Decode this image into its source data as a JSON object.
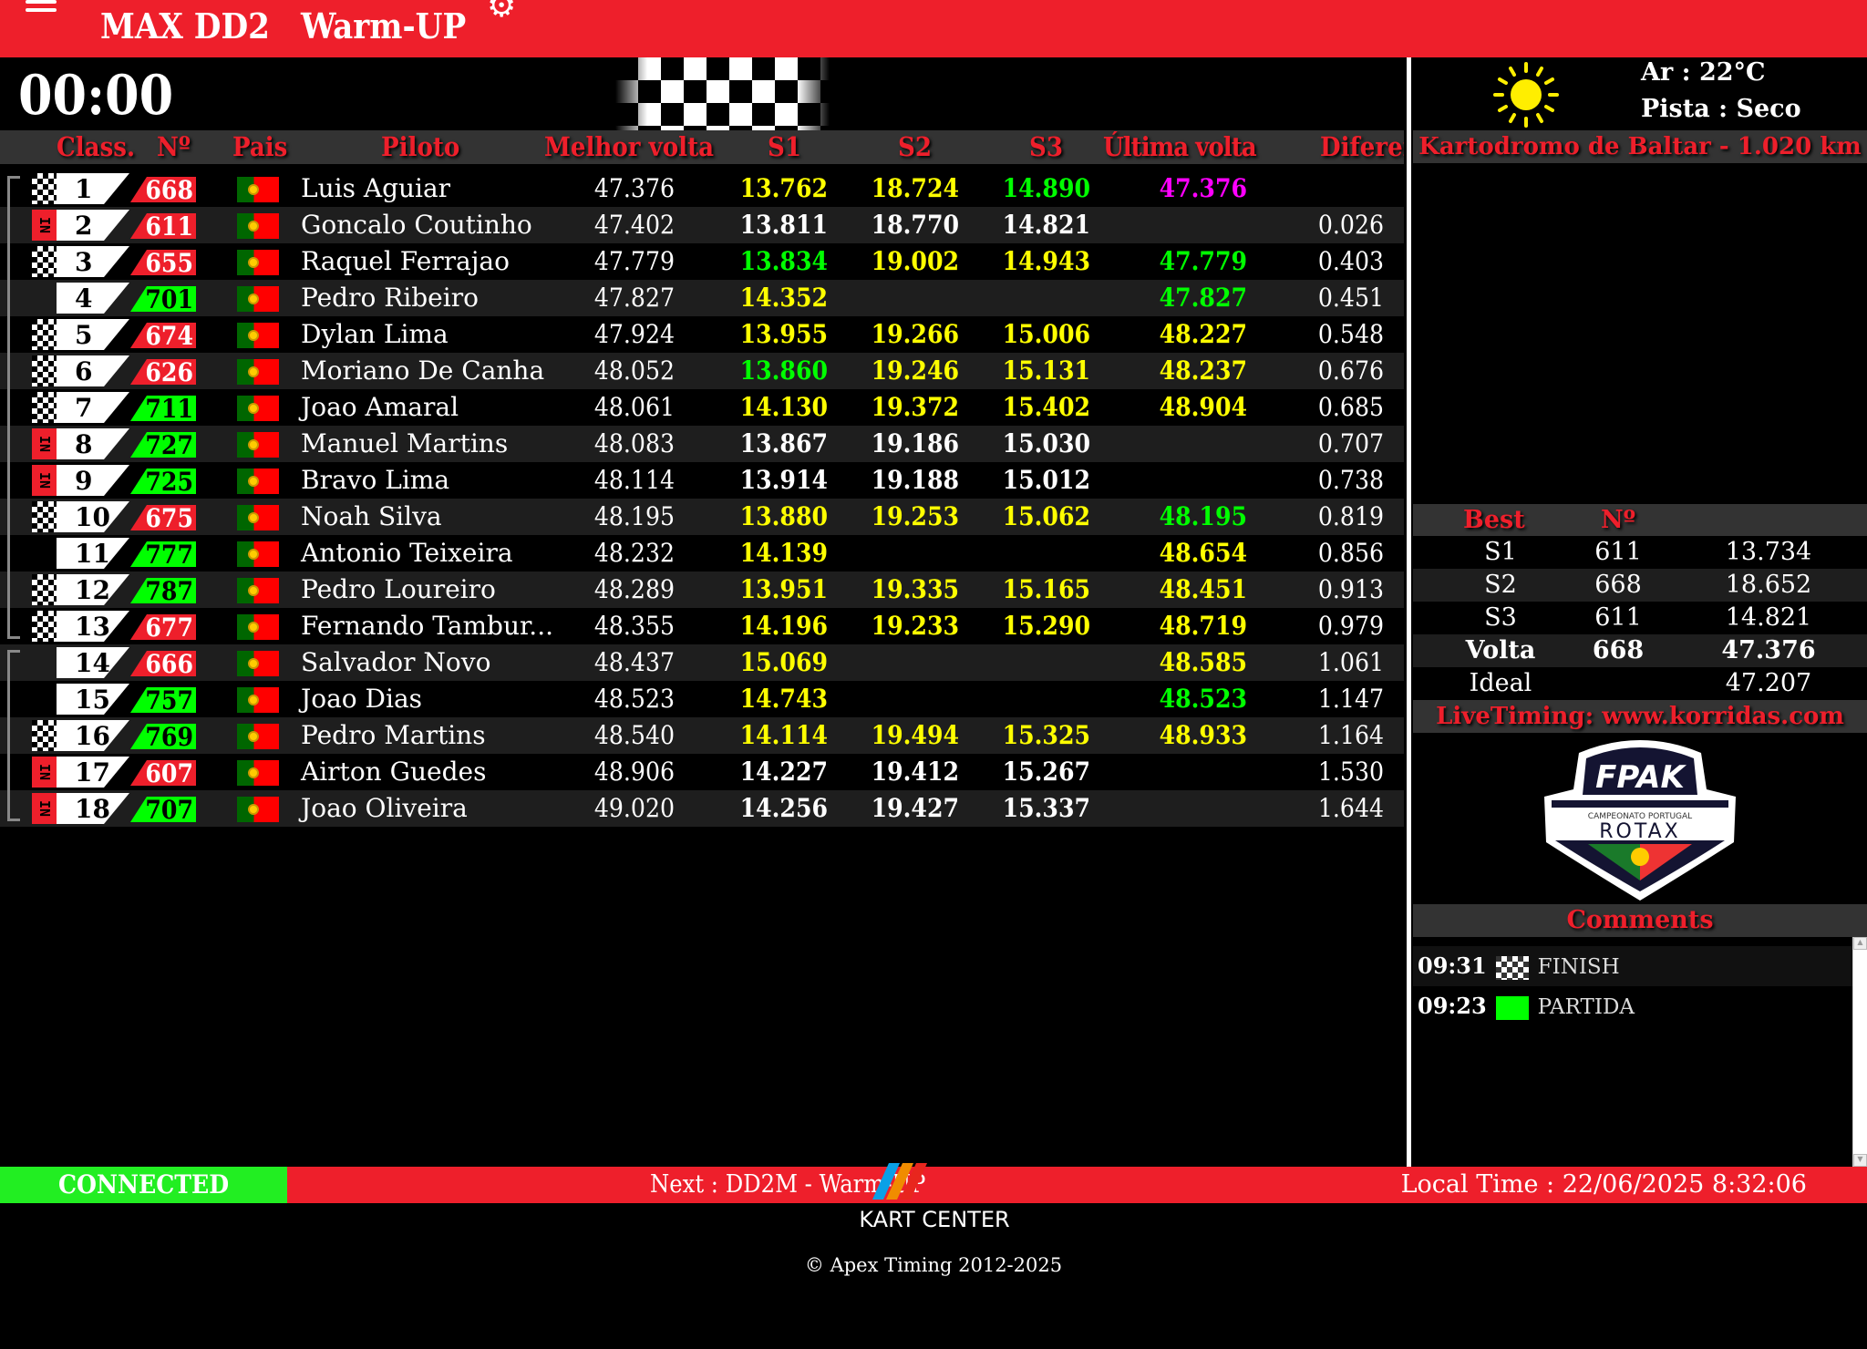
{
  "header": {
    "category": "MAX DD2",
    "session": "Warm-UP",
    "menu_icon": "hamburger-icon",
    "settings_icon": "gear-icon"
  },
  "timer": "00:00",
  "columns": [
    "Class.",
    "Nº",
    "Pais",
    "Piloto",
    "Melhor volta",
    "S1",
    "S2",
    "S3",
    "Última volta",
    "Diferença"
  ],
  "colors": {
    "red": "#ee1f2b",
    "yellow": "#ffff00",
    "green": "#00ff00",
    "magenta": "#ff00ff",
    "connected": "#22ee22"
  },
  "rows": [
    {
      "pos": "1",
      "num": "668",
      "num_color": "red",
      "status": "checker",
      "name": "Luis Aguiar",
      "best": "47.376",
      "s1": {
        "v": "13.762",
        "c": "y"
      },
      "s2": {
        "v": "18.724",
        "c": "y"
      },
      "s3": {
        "v": "14.890",
        "c": "g"
      },
      "last": {
        "v": "47.376",
        "c": "m"
      },
      "diff": ""
    },
    {
      "pos": "2",
      "num": "611",
      "num_color": "red",
      "status": "IN",
      "name": "Goncalo Coutinho",
      "best": "47.402",
      "s1": {
        "v": "13.811",
        "c": "wb"
      },
      "s2": {
        "v": "18.770",
        "c": "wb"
      },
      "s3": {
        "v": "14.821",
        "c": "wb"
      },
      "last": {
        "v": "",
        "c": "w"
      },
      "diff": "0.026"
    },
    {
      "pos": "3",
      "num": "655",
      "num_color": "red",
      "status": "checker",
      "name": "Raquel Ferrajao",
      "best": "47.779",
      "s1": {
        "v": "13.834",
        "c": "g"
      },
      "s2": {
        "v": "19.002",
        "c": "y"
      },
      "s3": {
        "v": "14.943",
        "c": "y"
      },
      "last": {
        "v": "47.779",
        "c": "g"
      },
      "diff": "0.403"
    },
    {
      "pos": "4",
      "num": "701",
      "num_color": "green",
      "status": "",
      "name": "Pedro Ribeiro",
      "best": "47.827",
      "s1": {
        "v": "14.352",
        "c": "y"
      },
      "s2": {
        "v": "",
        "c": "w"
      },
      "s3": {
        "v": "",
        "c": "w"
      },
      "last": {
        "v": "47.827",
        "c": "g"
      },
      "diff": "0.451"
    },
    {
      "pos": "5",
      "num": "674",
      "num_color": "red",
      "status": "checker",
      "name": "Dylan Lima",
      "best": "47.924",
      "s1": {
        "v": "13.955",
        "c": "y"
      },
      "s2": {
        "v": "19.266",
        "c": "y"
      },
      "s3": {
        "v": "15.006",
        "c": "y"
      },
      "last": {
        "v": "48.227",
        "c": "y"
      },
      "diff": "0.548"
    },
    {
      "pos": "6",
      "num": "626",
      "num_color": "red",
      "status": "checker",
      "name": "Moriano De Canha",
      "best": "48.052",
      "s1": {
        "v": "13.860",
        "c": "g"
      },
      "s2": {
        "v": "19.246",
        "c": "y"
      },
      "s3": {
        "v": "15.131",
        "c": "y"
      },
      "last": {
        "v": "48.237",
        "c": "y"
      },
      "diff": "0.676"
    },
    {
      "pos": "7",
      "num": "711",
      "num_color": "green",
      "status": "checker",
      "name": "Joao Amaral",
      "best": "48.061",
      "s1": {
        "v": "14.130",
        "c": "y"
      },
      "s2": {
        "v": "19.372",
        "c": "y"
      },
      "s3": {
        "v": "15.402",
        "c": "y"
      },
      "last": {
        "v": "48.904",
        "c": "y"
      },
      "diff": "0.685"
    },
    {
      "pos": "8",
      "num": "727",
      "num_color": "green",
      "status": "IN",
      "name": "Manuel Martins",
      "best": "48.083",
      "s1": {
        "v": "13.867",
        "c": "wb"
      },
      "s2": {
        "v": "19.186",
        "c": "wb"
      },
      "s3": {
        "v": "15.030",
        "c": "wb"
      },
      "last": {
        "v": "",
        "c": "w"
      },
      "diff": "0.707"
    },
    {
      "pos": "9",
      "num": "725",
      "num_color": "green",
      "status": "IN",
      "name": "Bravo Lima",
      "best": "48.114",
      "s1": {
        "v": "13.914",
        "c": "wb"
      },
      "s2": {
        "v": "19.188",
        "c": "wb"
      },
      "s3": {
        "v": "15.012",
        "c": "wb"
      },
      "last": {
        "v": "",
        "c": "w"
      },
      "diff": "0.738"
    },
    {
      "pos": "10",
      "num": "675",
      "num_color": "red",
      "status": "checker",
      "name": "Noah Silva",
      "best": "48.195",
      "s1": {
        "v": "13.880",
        "c": "y"
      },
      "s2": {
        "v": "19.253",
        "c": "y"
      },
      "s3": {
        "v": "15.062",
        "c": "y"
      },
      "last": {
        "v": "48.195",
        "c": "g"
      },
      "diff": "0.819"
    },
    {
      "pos": "11",
      "num": "777",
      "num_color": "green",
      "status": "",
      "name": "Antonio Teixeira",
      "best": "48.232",
      "s1": {
        "v": "14.139",
        "c": "y"
      },
      "s2": {
        "v": "",
        "c": "w"
      },
      "s3": {
        "v": "",
        "c": "w"
      },
      "last": {
        "v": "48.654",
        "c": "y"
      },
      "diff": "0.856"
    },
    {
      "pos": "12",
      "num": "787",
      "num_color": "green",
      "status": "checker",
      "name": "Pedro Loureiro",
      "best": "48.289",
      "s1": {
        "v": "13.951",
        "c": "y"
      },
      "s2": {
        "v": "19.335",
        "c": "y"
      },
      "s3": {
        "v": "15.165",
        "c": "y"
      },
      "last": {
        "v": "48.451",
        "c": "y"
      },
      "diff": "0.913"
    },
    {
      "pos": "13",
      "num": "677",
      "num_color": "red",
      "status": "checker",
      "name": "Fernando Tambur...",
      "best": "48.355",
      "s1": {
        "v": "14.196",
        "c": "y"
      },
      "s2": {
        "v": "19.233",
        "c": "y"
      },
      "s3": {
        "v": "15.290",
        "c": "y"
      },
      "last": {
        "v": "48.719",
        "c": "y"
      },
      "diff": "0.979"
    },
    {
      "pos": "14",
      "num": "666",
      "num_color": "red",
      "status": "",
      "name": "Salvador Novo",
      "best": "48.437",
      "s1": {
        "v": "15.069",
        "c": "y"
      },
      "s2": {
        "v": "",
        "c": "w"
      },
      "s3": {
        "v": "",
        "c": "w"
      },
      "last": {
        "v": "48.585",
        "c": "y"
      },
      "diff": "1.061"
    },
    {
      "pos": "15",
      "num": "757",
      "num_color": "green",
      "status": "",
      "name": "Joao Dias",
      "best": "48.523",
      "s1": {
        "v": "14.743",
        "c": "y"
      },
      "s2": {
        "v": "",
        "c": "w"
      },
      "s3": {
        "v": "",
        "c": "w"
      },
      "last": {
        "v": "48.523",
        "c": "g"
      },
      "diff": "1.147"
    },
    {
      "pos": "16",
      "num": "769",
      "num_color": "green",
      "status": "checker",
      "name": "Pedro Martins",
      "best": "48.540",
      "s1": {
        "v": "14.114",
        "c": "y"
      },
      "s2": {
        "v": "19.494",
        "c": "y"
      },
      "s3": {
        "v": "15.325",
        "c": "y"
      },
      "last": {
        "v": "48.933",
        "c": "y"
      },
      "diff": "1.164"
    },
    {
      "pos": "17",
      "num": "607",
      "num_color": "red",
      "status": "IN",
      "name": "Airton Guedes",
      "best": "48.906",
      "s1": {
        "v": "14.227",
        "c": "wb"
      },
      "s2": {
        "v": "19.412",
        "c": "wb"
      },
      "s3": {
        "v": "15.267",
        "c": "wb"
      },
      "last": {
        "v": "",
        "c": "w"
      },
      "diff": "1.530"
    },
    {
      "pos": "18",
      "num": "707",
      "num_color": "green",
      "status": "IN",
      "name": "Joao Oliveira",
      "best": "49.020",
      "s1": {
        "v": "14.256",
        "c": "wb"
      },
      "s2": {
        "v": "19.427",
        "c": "wb"
      },
      "s3": {
        "v": "15.337",
        "c": "wb"
      },
      "last": {
        "v": "",
        "c": "w"
      },
      "diff": "1.644"
    }
  ],
  "weather": {
    "icon": "sun-icon",
    "air": "Ar : 22°C",
    "track": "Pista : Seco"
  },
  "track_name": "Kartodromo de Baltar - 1.020 km",
  "best": {
    "headers": [
      "Best",
      "Nº",
      ""
    ],
    "rows": [
      [
        "S1",
        "611",
        "13.734"
      ],
      [
        "S2",
        "668",
        "18.652"
      ],
      [
        "S3",
        "611",
        "14.821"
      ],
      [
        "Volta",
        "668",
        "47.376"
      ],
      [
        "Ideal",
        "",
        "47.207"
      ]
    ]
  },
  "livetiming": "LiveTiming: www.korridas.com",
  "logo": {
    "top": "FPAK",
    "sub": "CAMPEONATO PORTUGAL",
    "main": "ROTAX"
  },
  "comments_title": "Comments",
  "comments": [
    {
      "time": "09:31",
      "icon": "checkered-flag-icon",
      "text": "FINISH"
    },
    {
      "time": "09:23",
      "icon": "green-flag-icon",
      "text": "PARTIDA"
    }
  ],
  "footer": {
    "status": "CONNECTED",
    "next": "Next : DD2M - Warm-UP",
    "local_time": "Local Time : 22/06/2025 8:32:06",
    "copyright": "© Apex Timing 2012-2025",
    "sponsor": "KART CENTER"
  }
}
